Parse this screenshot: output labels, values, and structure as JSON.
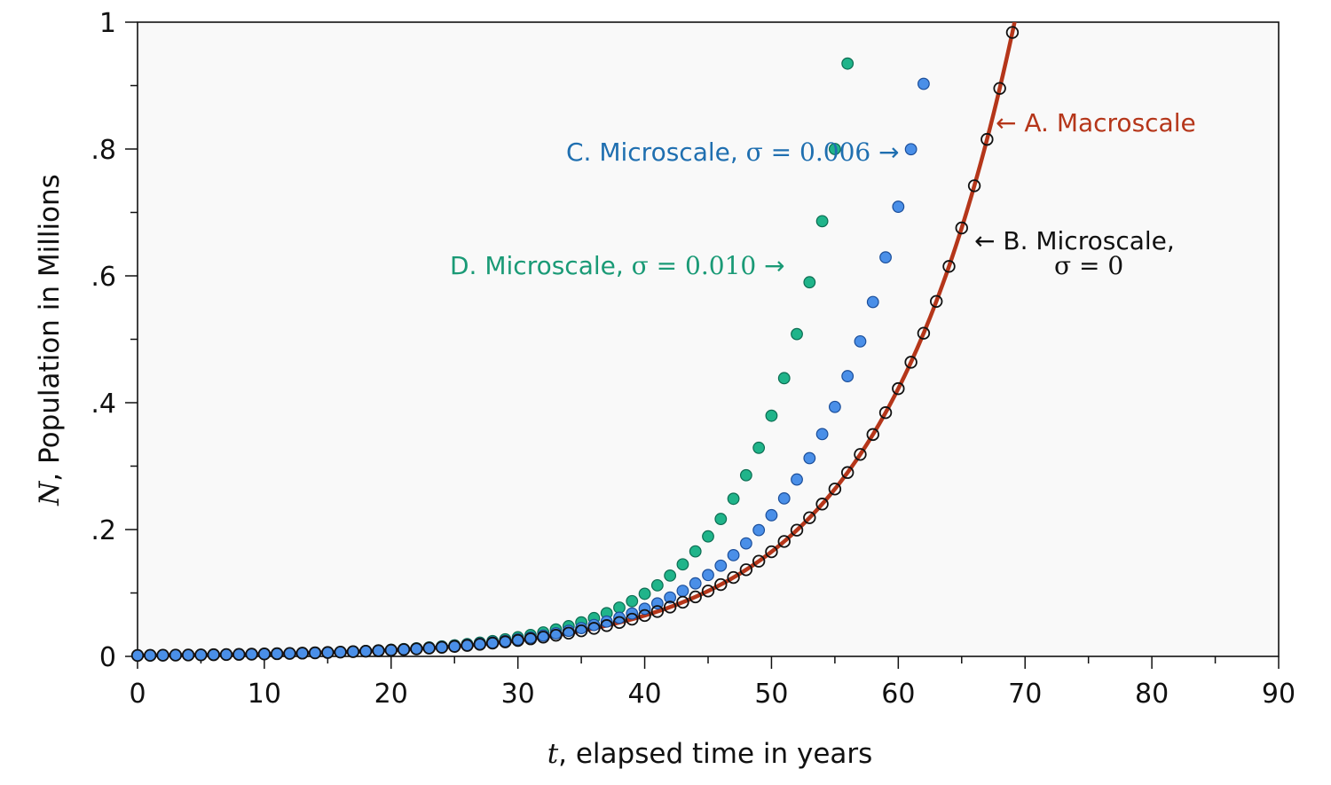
{
  "chart_data": {
    "type": "scatter",
    "xlabel_var": "t",
    "xlabel_text": ", elapsed time in years",
    "ylabel_var": "N",
    "ylabel_text": ", Population in Millions",
    "xlim": [
      0,
      90
    ],
    "ylim": [
      0,
      1
    ],
    "x_ticks": [
      0,
      10,
      20,
      30,
      40,
      50,
      60,
      70,
      80,
      90
    ],
    "x_tick_labels": [
      "0",
      "10",
      "20",
      "30",
      "40",
      "50",
      "60",
      "70",
      "80",
      "90"
    ],
    "y_ticks": [
      0,
      0.2,
      0.4,
      0.6,
      0.8,
      1
    ],
    "y_tick_labels": [
      "0",
      ".2",
      ".4",
      ".6",
      ".8",
      "1"
    ],
    "grid": false,
    "colors": {
      "macroscale": "#b5361a",
      "sigma0": "#111111",
      "sigma006": "#4a8fe8",
      "sigma010": "#20b48a",
      "label_c": "#1f6fb0",
      "label_d": "#1a9a76",
      "plot_bg": "#f9f9f9"
    },
    "series": [
      {
        "key": "macro",
        "kind": "line",
        "N0": 0.0015,
        "growth_rate": 0.094,
        "annotation": "← A. Macroscale"
      },
      {
        "key": "sigma0",
        "kind": "hollow-markers",
        "N0": 0.0015,
        "growth_rate": 0.094,
        "annotation_line1": "← B. Microscale,",
        "annotation_line2_sym": "σ = 0"
      },
      {
        "key": "sigma006",
        "kind": "filled-markers",
        "N0": 0.0015,
        "growth_rate": 0.094,
        "extra": 1.8e-05,
        "annotation_text": "C. Microscale, ",
        "annotation_sym": "σ = 0.006",
        "annotation_arrow": " →"
      },
      {
        "key": "sigma010",
        "kind": "filled-markers",
        "N0": 0.0015,
        "growth_rate": 0.094,
        "extra": 5e-05,
        "annotation_text": "D. Microscale, ",
        "annotation_sym": "σ = 0.010",
        "annotation_arrow": " →"
      }
    ],
    "t_start": 0,
    "t_end": 70,
    "t_step": 1
  }
}
